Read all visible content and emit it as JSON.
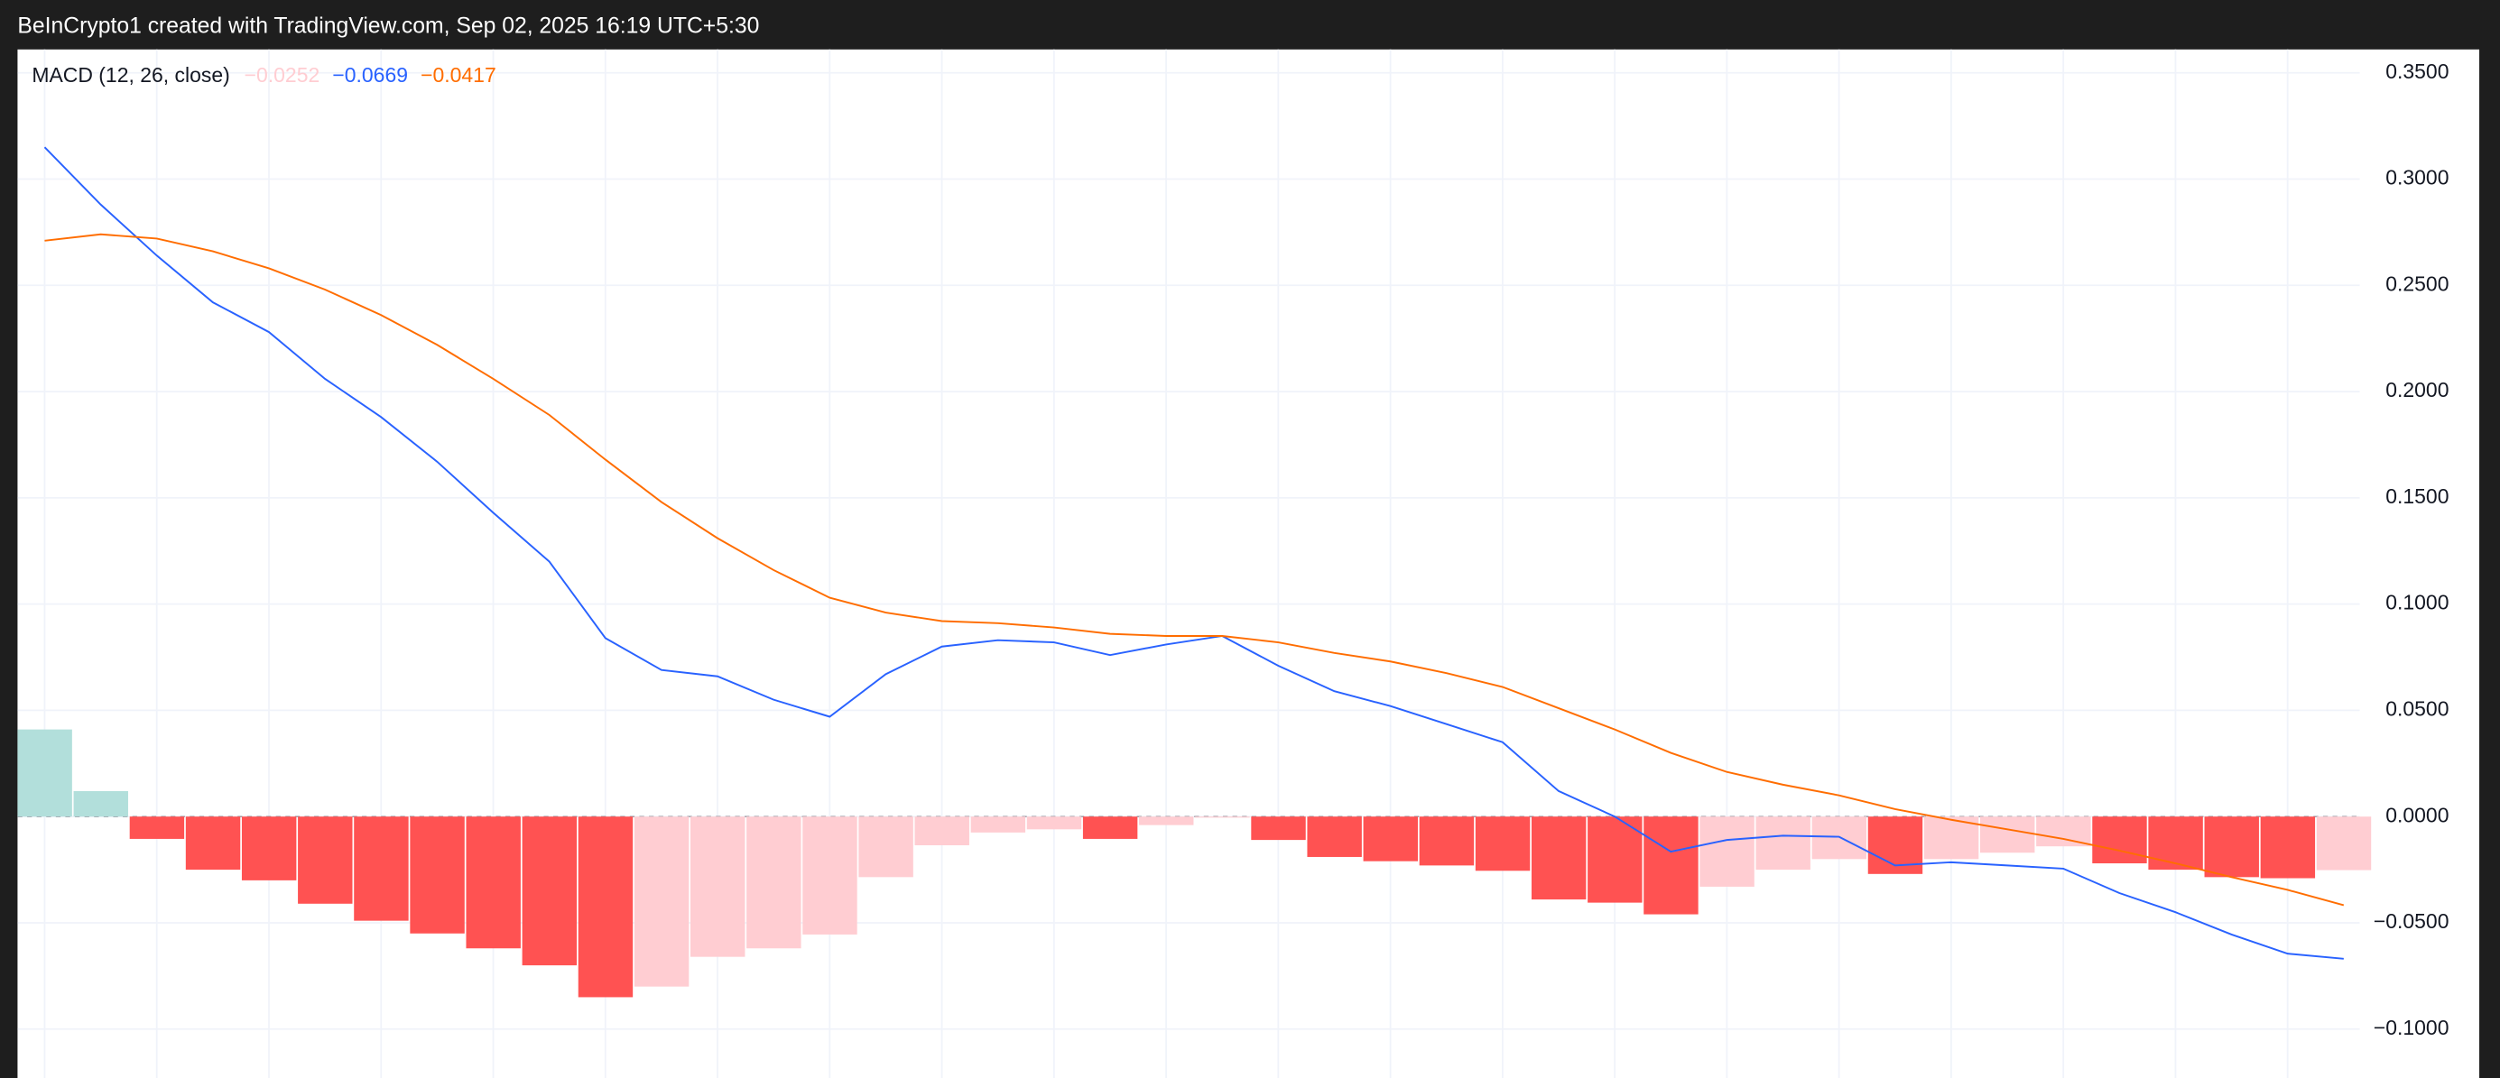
{
  "header": "BeInCrypto1 created with TradingView.com, Sep 02, 2025 16:19 UTC+5:30",
  "chart_data": {
    "type": "macd",
    "title": "MACD (12, 26, close)",
    "ylim": [
      -0.123,
      0.361
    ],
    "yticks": [
      {
        "value": 0.35,
        "label": "0.3500"
      },
      {
        "value": 0.3,
        "label": "0.3000"
      },
      {
        "value": 0.25,
        "label": "0.2500"
      },
      {
        "value": 0.2,
        "label": "0.2000"
      },
      {
        "value": 0.15,
        "label": "0.1500"
      },
      {
        "value": 0.1,
        "label": "0.1000"
      },
      {
        "value": 0.05,
        "label": "0.0500"
      },
      {
        "value": 0,
        "label": "0.0000"
      },
      {
        "value": -0.05,
        "label": "−0.0500"
      },
      {
        "value": -0.1,
        "label": "−0.1000"
      }
    ],
    "grid": true,
    "series": [
      {
        "type": "bar",
        "color": "#ffcdd2",
        "last_label": "−0.0252",
        "colors": [
          "#b2dfdb",
          "#b2dfdb",
          "#ff5252",
          "#ff5252",
          "#ff5252",
          "#ff5252",
          "#ff5252",
          "#ff5252",
          "#ff5252",
          "#ff5252",
          "#ff5252",
          "#ffcdd2",
          "#ffcdd2",
          "#ffcdd2",
          "#ffcdd2",
          "#ffcdd2",
          "#ffcdd2",
          "#ffcdd2",
          "#ffcdd2",
          "#ff5252",
          "#ffcdd2",
          "#ffcdd2",
          "#ff5252",
          "#ff5252",
          "#ff5252",
          "#ff5252",
          "#ff5252",
          "#ff5252",
          "#ff5252",
          "#ff5252",
          "#ffcdd2",
          "#ffcdd2",
          "#ffcdd2",
          "#ff5252",
          "#ffcdd2",
          "#ffcdd2",
          "#ffcdd2",
          "#ff5252",
          "#ff5252",
          "#ff5252",
          "#ff5252",
          "#ffcdd2"
        ],
        "values": [
          0.041,
          0.012,
          -0.0105,
          -0.025,
          -0.03,
          -0.041,
          -0.049,
          -0.055,
          -0.062,
          -0.07,
          -0.085,
          -0.08,
          -0.066,
          -0.062,
          -0.0555,
          -0.0285,
          -0.0135,
          -0.0075,
          -0.006,
          -0.0105,
          -0.004,
          -0.0005,
          -0.011,
          -0.019,
          -0.021,
          -0.023,
          -0.0255,
          -0.039,
          -0.0405,
          -0.046,
          -0.033,
          -0.025,
          -0.02,
          -0.027,
          -0.02,
          -0.017,
          -0.014,
          -0.022,
          -0.025,
          -0.0285,
          -0.029,
          -0.0252
        ]
      },
      {
        "type": "line",
        "color": "#2962ff",
        "last_label": "−0.0669",
        "values": [
          0.315,
          0.288,
          0.264,
          0.242,
          0.228,
          0.206,
          0.188,
          0.167,
          0.143,
          0.12,
          0.084,
          0.069,
          0.066,
          0.055,
          0.047,
          0.067,
          0.08,
          0.083,
          0.082,
          0.076,
          0.081,
          0.085,
          0.071,
          0.059,
          0.052,
          0.0435,
          0.035,
          0.012,
          0.0,
          -0.0165,
          -0.011,
          -0.009,
          -0.0095,
          -0.023,
          -0.0215,
          -0.023,
          -0.0245,
          -0.036,
          -0.045,
          -0.0555,
          -0.0645,
          -0.0669
        ]
      },
      {
        "type": "line",
        "color": "#ff6d00",
        "last_label": "−0.0417",
        "values": [
          0.271,
          0.274,
          0.272,
          0.266,
          0.258,
          0.248,
          0.236,
          0.222,
          0.206,
          0.189,
          0.168,
          0.148,
          0.131,
          0.116,
          0.103,
          0.096,
          0.092,
          0.091,
          0.089,
          0.086,
          0.085,
          0.085,
          0.082,
          0.077,
          0.073,
          0.0675,
          0.061,
          0.051,
          0.041,
          0.03,
          0.021,
          0.015,
          0.01,
          0.0035,
          -0.0015,
          -0.006,
          -0.0105,
          -0.016,
          -0.022,
          -0.0285,
          -0.0345,
          -0.0417
        ]
      }
    ]
  }
}
